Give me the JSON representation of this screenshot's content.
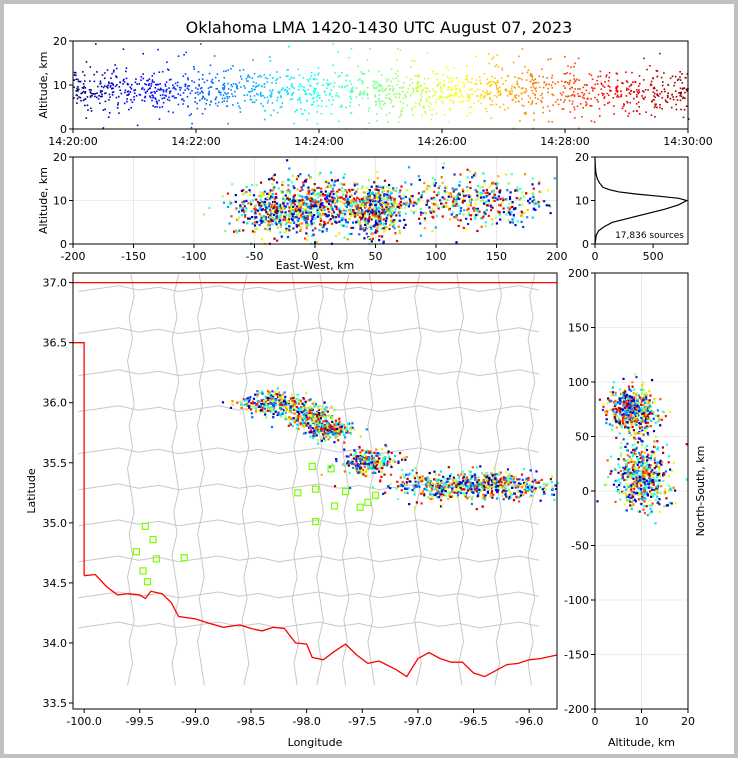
{
  "title": "Oklahoma LMA 1420-1430 UTC August 07, 2023",
  "colors": {
    "state_border": "#ff0000",
    "county_lines": "#c8c8c8",
    "station_marker": "#7cfc00",
    "axes": "#000000"
  },
  "chart_data": [
    {
      "name": "time-height",
      "type": "scatter",
      "xlabel": "",
      "ylabel": "Altitude, km",
      "x_ticks": [
        "14:20:00",
        "14:22:00",
        "14:24:00",
        "14:26:00",
        "14:28:00",
        "14:30:00"
      ],
      "y_ticks": [
        0,
        10,
        20
      ],
      "xlim": [
        "14:20:00",
        "14:30:00"
      ],
      "ylim": [
        0,
        20
      ],
      "colormap": "jet (by time)",
      "series": [
        {
          "x_min": [
            0.0,
            0.7,
            1.5,
            2.0,
            2.8,
            3.5,
            4.2,
            5.0,
            5.6,
            6.3,
            7.0,
            7.8,
            8.5,
            9.2,
            9.8
          ],
          "y_center": [
            9,
            9,
            8,
            10,
            9,
            9,
            8,
            10,
            9,
            8,
            9,
            9,
            8,
            9,
            9
          ]
        }
      ]
    },
    {
      "name": "east-west-height",
      "type": "scatter",
      "xlabel": "East-West, km",
      "ylabel": "Altitude, km",
      "x_ticks": [
        -200,
        -150,
        -100,
        -50,
        0,
        50,
        100,
        150,
        200
      ],
      "y_ticks": [
        0,
        10,
        20
      ],
      "xlim": [
        -200,
        200
      ],
      "ylim": [
        0,
        20
      ],
      "clusters": [
        {
          "x": -30,
          "y": 8,
          "sx": 20,
          "sy": 3
        },
        {
          "x": 5,
          "y": 9,
          "sx": 25,
          "sy": 3
        },
        {
          "x": 50,
          "y": 8,
          "sx": 12,
          "sy": 3
        },
        {
          "x": 130,
          "y": 10,
          "sx": 35,
          "sy": 3
        }
      ]
    },
    {
      "name": "altitude-histogram",
      "type": "line",
      "x_ticks": [
        0,
        500
      ],
      "y_ticks": [
        0,
        10,
        20
      ],
      "xlim": [
        0,
        800
      ],
      "ylim": [
        0,
        20
      ],
      "annotation": "17,836 sources",
      "x": [
        0,
        5,
        10,
        30,
        80,
        150,
        300,
        450,
        600,
        720,
        790,
        720,
        550,
        350,
        200,
        120,
        70,
        40,
        20,
        10,
        5,
        3,
        0
      ],
      "y": [
        0,
        1,
        2,
        3,
        4,
        5,
        6,
        7,
        8,
        9,
        10,
        10.5,
        11,
        11.5,
        12,
        12.5,
        13,
        14,
        15,
        16,
        17,
        18,
        20
      ]
    },
    {
      "name": "plan-view",
      "type": "scatter",
      "xlabel": "Longitude",
      "ylabel": "Latitude",
      "x_ticks": [
        -100.0,
        -99.5,
        -99.0,
        -98.5,
        -98.0,
        -97.5,
        -97.0,
        -96.5,
        -96.0
      ],
      "y_ticks": [
        33.5,
        34.0,
        34.5,
        35.0,
        35.5,
        36.0,
        36.5,
        37.0
      ],
      "xlim": [
        -100.1,
        -95.75
      ],
      "ylim": [
        33.45,
        37.08
      ],
      "clusters": [
        {
          "lon": -98.3,
          "lat": 36.0,
          "slon": 0.15,
          "slat": 0.05
        },
        {
          "lon": -98.0,
          "lat": 35.9,
          "slon": 0.1,
          "slat": 0.05
        },
        {
          "lon": -97.8,
          "lat": 35.78,
          "slon": 0.1,
          "slat": 0.04
        },
        {
          "lon": -97.45,
          "lat": 35.52,
          "slon": 0.12,
          "slat": 0.05
        },
        {
          "lon": -96.5,
          "lat": 35.32,
          "slon": 0.4,
          "slat": 0.06
        }
      ],
      "stations": [
        [
          -99.45,
          34.97
        ],
        [
          -99.38,
          34.86
        ],
        [
          -99.35,
          34.7
        ],
        [
          -99.53,
          34.76
        ],
        [
          -99.47,
          34.6
        ],
        [
          -99.43,
          34.51
        ],
        [
          -99.1,
          34.71
        ],
        [
          -97.95,
          35.47
        ],
        [
          -98.08,
          35.25
        ],
        [
          -97.92,
          35.28
        ],
        [
          -97.78,
          35.45
        ],
        [
          -97.65,
          35.26
        ],
        [
          -97.75,
          35.14
        ],
        [
          -97.52,
          35.13
        ],
        [
          -97.45,
          35.17
        ],
        [
          -97.38,
          35.23
        ],
        [
          -97.92,
          35.01
        ]
      ]
    },
    {
      "name": "north-south-height",
      "type": "scatter",
      "xlabel": "Altitude, km",
      "ylabel": "North-South, km",
      "x_ticks": [
        0,
        10,
        20
      ],
      "y_ticks": [
        -200,
        -150,
        -100,
        -50,
        0,
        50,
        100,
        150,
        200
      ],
      "xlim": [
        0,
        20
      ],
      "ylim": [
        -200,
        200
      ],
      "clusters": [
        {
          "alt": 8,
          "ns": 75,
          "salt": 2.5,
          "sns": 10
        },
        {
          "alt": 10,
          "ns": 15,
          "salt": 3,
          "sns": 15
        }
      ]
    }
  ]
}
